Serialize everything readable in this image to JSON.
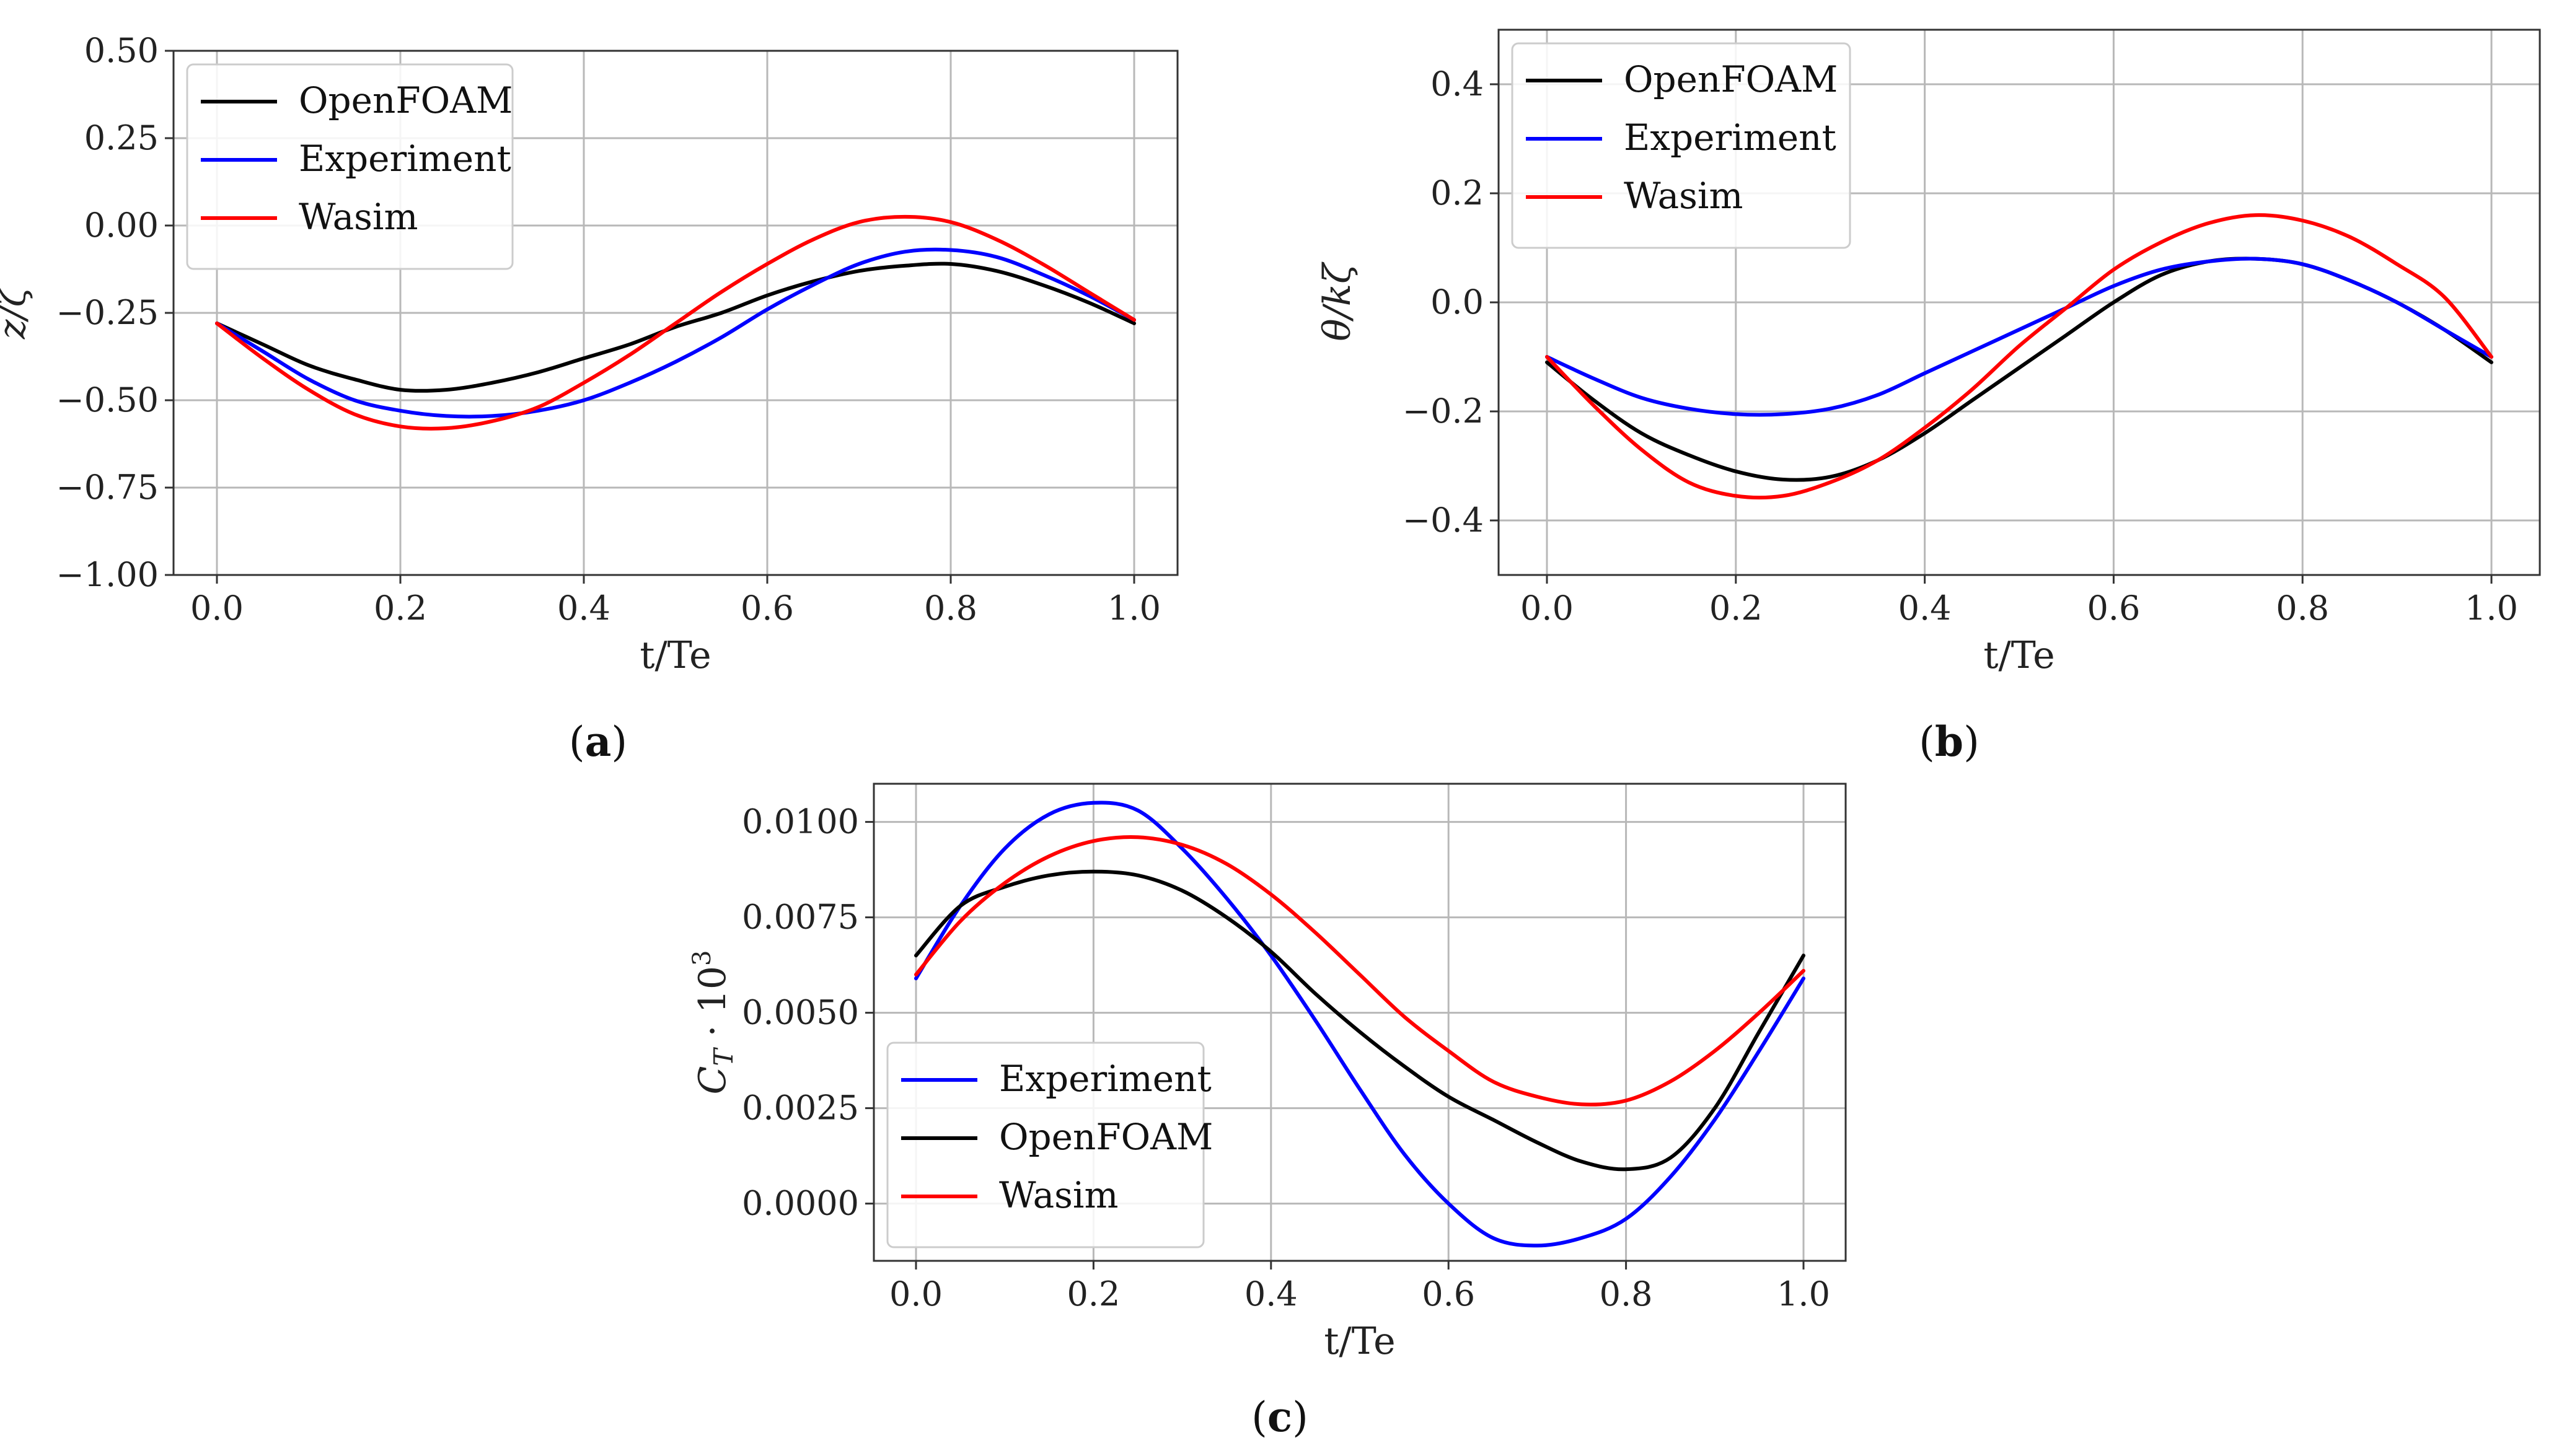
{
  "chart_data": [
    {
      "id": "a",
      "type": "line",
      "caption": "(a)",
      "caption_letter": "a",
      "xlabel": "t/Te",
      "ylabel": "z/ζ",
      "xlim": [
        0,
        1.0
      ],
      "ylim": [
        -1.0,
        0.5
      ],
      "xticks": [
        0.0,
        0.2,
        0.4,
        0.6,
        0.8,
        1.0
      ],
      "xtick_labels": [
        "0.0",
        "0.2",
        "0.4",
        "0.6",
        "0.8",
        "1.0"
      ],
      "yticks": [
        -1.0,
        -0.75,
        -0.5,
        -0.25,
        0.0,
        0.25,
        0.5
      ],
      "ytick_labels": [
        "−1.00",
        "−0.75",
        "−0.50",
        "−0.25",
        "0.00",
        "0.25",
        "0.50"
      ],
      "legend_position": "top-left",
      "x": [
        0.0,
        0.05,
        0.1,
        0.15,
        0.2,
        0.25,
        0.3,
        0.35,
        0.4,
        0.45,
        0.5,
        0.55,
        0.6,
        0.65,
        0.7,
        0.75,
        0.8,
        0.85,
        0.9,
        0.95,
        1.0
      ],
      "series": [
        {
          "name": "OpenFOAM",
          "color": "#000000",
          "values": [
            -0.28,
            -0.34,
            -0.4,
            -0.44,
            -0.47,
            -0.47,
            -0.45,
            -0.42,
            -0.38,
            -0.34,
            -0.29,
            -0.25,
            -0.2,
            -0.16,
            -0.13,
            -0.115,
            -0.11,
            -0.13,
            -0.17,
            -0.22,
            -0.28
          ]
        },
        {
          "name": "Experiment",
          "color": "#0000ff",
          "values": [
            -0.28,
            -0.36,
            -0.44,
            -0.5,
            -0.53,
            -0.545,
            -0.545,
            -0.53,
            -0.5,
            -0.45,
            -0.39,
            -0.32,
            -0.24,
            -0.17,
            -0.11,
            -0.075,
            -0.07,
            -0.09,
            -0.14,
            -0.2,
            -0.27
          ]
        },
        {
          "name": "Wasim",
          "color": "#ff0000",
          "values": [
            -0.28,
            -0.38,
            -0.47,
            -0.54,
            -0.575,
            -0.58,
            -0.56,
            -0.52,
            -0.45,
            -0.37,
            -0.28,
            -0.19,
            -0.11,
            -0.04,
            0.01,
            0.025,
            0.01,
            -0.04,
            -0.11,
            -0.19,
            -0.27
          ]
        }
      ]
    },
    {
      "id": "b",
      "type": "line",
      "caption": "(b)",
      "caption_letter": "b",
      "xlabel": "t/Te",
      "ylabel": "θ/kζ",
      "xlim": [
        0,
        1.0
      ],
      "ylim": [
        -0.5,
        0.5
      ],
      "xticks": [
        0.0,
        0.2,
        0.4,
        0.6,
        0.8,
        1.0
      ],
      "xtick_labels": [
        "0.0",
        "0.2",
        "0.4",
        "0.6",
        "0.8",
        "1.0"
      ],
      "yticks": [
        -0.4,
        -0.2,
        0.0,
        0.2,
        0.4
      ],
      "ytick_labels": [
        "−0.4",
        "−0.2",
        "0.0",
        "0.2",
        "0.4"
      ],
      "legend_position": "top-left",
      "x": [
        0.0,
        0.05,
        0.1,
        0.15,
        0.2,
        0.25,
        0.3,
        0.35,
        0.4,
        0.45,
        0.5,
        0.55,
        0.6,
        0.65,
        0.7,
        0.75,
        0.8,
        0.85,
        0.9,
        0.95,
        1.0
      ],
      "series": [
        {
          "name": "OpenFOAM",
          "color": "#000000",
          "values": [
            -0.11,
            -0.18,
            -0.24,
            -0.28,
            -0.31,
            -0.325,
            -0.32,
            -0.29,
            -0.24,
            -0.18,
            -0.12,
            -0.06,
            0.0,
            0.05,
            0.075,
            0.08,
            0.07,
            0.04,
            0.0,
            -0.05,
            -0.11
          ]
        },
        {
          "name": "Experiment",
          "color": "#0000ff",
          "values": [
            -0.1,
            -0.14,
            -0.175,
            -0.195,
            -0.205,
            -0.205,
            -0.195,
            -0.17,
            -0.13,
            -0.09,
            -0.05,
            -0.01,
            0.03,
            0.06,
            0.075,
            0.08,
            0.07,
            0.04,
            0.0,
            -0.05,
            -0.1
          ]
        },
        {
          "name": "Wasim",
          "color": "#ff0000",
          "values": [
            -0.1,
            -0.19,
            -0.27,
            -0.33,
            -0.355,
            -0.355,
            -0.33,
            -0.29,
            -0.23,
            -0.16,
            -0.08,
            -0.01,
            0.06,
            0.11,
            0.145,
            0.16,
            0.15,
            0.12,
            0.07,
            0.01,
            -0.1
          ]
        }
      ]
    },
    {
      "id": "c",
      "type": "line",
      "caption": "(c)",
      "caption_letter": "c",
      "xlabel": "t/Te",
      "ylabel": "C_T · 10^3",
      "ylabel_parts": {
        "base": "C",
        "sub": "T",
        "dot": " · 10",
        "sup": "3"
      },
      "xlim": [
        0,
        1.0
      ],
      "ylim": [
        -0.0015,
        0.011
      ],
      "xticks": [
        0.0,
        0.2,
        0.4,
        0.6,
        0.8,
        1.0
      ],
      "xtick_labels": [
        "0.0",
        "0.2",
        "0.4",
        "0.6",
        "0.8",
        "1.0"
      ],
      "yticks": [
        0.0,
        0.0025,
        0.005,
        0.0075,
        0.01
      ],
      "ytick_labels": [
        "0.0000",
        "0.0025",
        "0.0050",
        "0.0075",
        "0.0100"
      ],
      "legend_position": "bottom-left",
      "x": [
        0.0,
        0.05,
        0.1,
        0.15,
        0.2,
        0.25,
        0.3,
        0.35,
        0.4,
        0.45,
        0.5,
        0.55,
        0.6,
        0.65,
        0.7,
        0.75,
        0.8,
        0.85,
        0.9,
        0.95,
        1.0
      ],
      "series": [
        {
          "name": "Experiment",
          "color": "#0000ff",
          "values": [
            0.0059,
            0.0078,
            0.0093,
            0.0102,
            0.0105,
            0.0103,
            0.0093,
            0.008,
            0.0065,
            0.0048,
            0.003,
            0.0013,
            0.0,
            -0.0009,
            -0.0011,
            -0.0009,
            -0.0004,
            0.0007,
            0.0022,
            0.004,
            0.0059
          ]
        },
        {
          "name": "OpenFOAM",
          "color": "#000000",
          "values": [
            0.0065,
            0.0078,
            0.0083,
            0.0086,
            0.0087,
            0.0086,
            0.0082,
            0.0075,
            0.0066,
            0.0055,
            0.0045,
            0.0036,
            0.0028,
            0.0022,
            0.0016,
            0.0011,
            0.0009,
            0.0012,
            0.0025,
            0.0045,
            0.0065
          ]
        },
        {
          "name": "Wasim",
          "color": "#ff0000",
          "values": [
            0.006,
            0.0074,
            0.0084,
            0.0091,
            0.0095,
            0.0096,
            0.0094,
            0.0089,
            0.0081,
            0.0071,
            0.006,
            0.0049,
            0.004,
            0.0032,
            0.0028,
            0.0026,
            0.0027,
            0.0032,
            0.004,
            0.005,
            0.0061
          ]
        }
      ]
    }
  ]
}
